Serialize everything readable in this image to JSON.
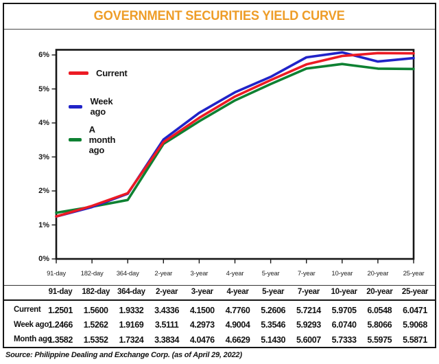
{
  "title": "GOVERNMENT SECURITIES YIELD CURVE",
  "source": "Source: Philippine Dealing and Exchange Corp. (as of April 29, 2022)",
  "colors": {
    "title": "#EE9D28",
    "current": "#EC1B24",
    "week_ago": "#2023C8",
    "month_ago": "#0E8132",
    "border": "#161616"
  },
  "legend": [
    {
      "label": "Current",
      "color": "#EC1B24"
    },
    {
      "label": "Week ago",
      "color": "#2023C8"
    },
    {
      "label": "A month ago",
      "color": "#0E8132"
    }
  ],
  "y_axis": {
    "tick_labels_top_to_bottom": [
      "6%",
      "5%",
      "4%",
      "3%",
      "2%",
      "1%",
      "0%"
    ]
  },
  "chart_data": {
    "type": "line",
    "title": "GOVERNMENT SECURITIES YIELD CURVE",
    "categories": [
      "91-day",
      "182-day",
      "364-day",
      "2-year",
      "3-year",
      "4-year",
      "5-year",
      "7-year",
      "10-year",
      "20-year",
      "25-year"
    ],
    "series": [
      {
        "name": "Current",
        "color": "#EC1B24",
        "values": [
          1.2501,
          1.56,
          1.9332,
          3.4336,
          4.15,
          4.776,
          5.2606,
          5.7214,
          5.9705,
          6.0548,
          6.0471
        ]
      },
      {
        "name": "Week ago",
        "color": "#2023C8",
        "values": [
          1.2466,
          1.5262,
          1.9169,
          3.5111,
          4.2973,
          4.9004,
          5.3546,
          5.9293,
          6.074,
          5.8066,
          5.9068
        ]
      },
      {
        "name": "A month ago",
        "color": "#0E8132",
        "values": [
          1.3582,
          1.5352,
          1.7324,
          3.3834,
          4.0476,
          4.6629,
          5.143,
          5.6007,
          5.7333,
          5.5975,
          5.5871
        ]
      }
    ],
    "xlabel": "",
    "ylabel": "",
    "ylim": [
      0,
      6.15
    ],
    "y_ticks": [
      "0%",
      "1%",
      "2%",
      "3%",
      "4%",
      "5%",
      "6%"
    ],
    "grid": false,
    "legend_position": "top-left"
  },
  "table": {
    "columns": [
      "91-day",
      "182-day",
      "364-day",
      "2-year",
      "3-year",
      "4-year",
      "5-year",
      "7-year",
      "10-year",
      "20-year",
      "25-year"
    ],
    "rows": [
      {
        "label": "Current",
        "values": [
          "1.2501",
          "1.5600",
          "1.9332",
          "3.4336",
          "4.1500",
          "4.7760",
          "5.2606",
          "5.7214",
          "5.9705",
          "6.0548",
          "6.0471"
        ]
      },
      {
        "label": "Week ago",
        "values": [
          "1.2466",
          "1.5262",
          "1.9169",
          "3.5111",
          "4.2973",
          "4.9004",
          "5.3546",
          "5.9293",
          "6.0740",
          "5.8066",
          "5.9068"
        ]
      },
      {
        "label": "Month ago",
        "values": [
          "1.3582",
          "1.5352",
          "1.7324",
          "3.3834",
          "4.0476",
          "4.6629",
          "5.1430",
          "5.6007",
          "5.7333",
          "5.5975",
          "5.5871"
        ]
      }
    ]
  }
}
